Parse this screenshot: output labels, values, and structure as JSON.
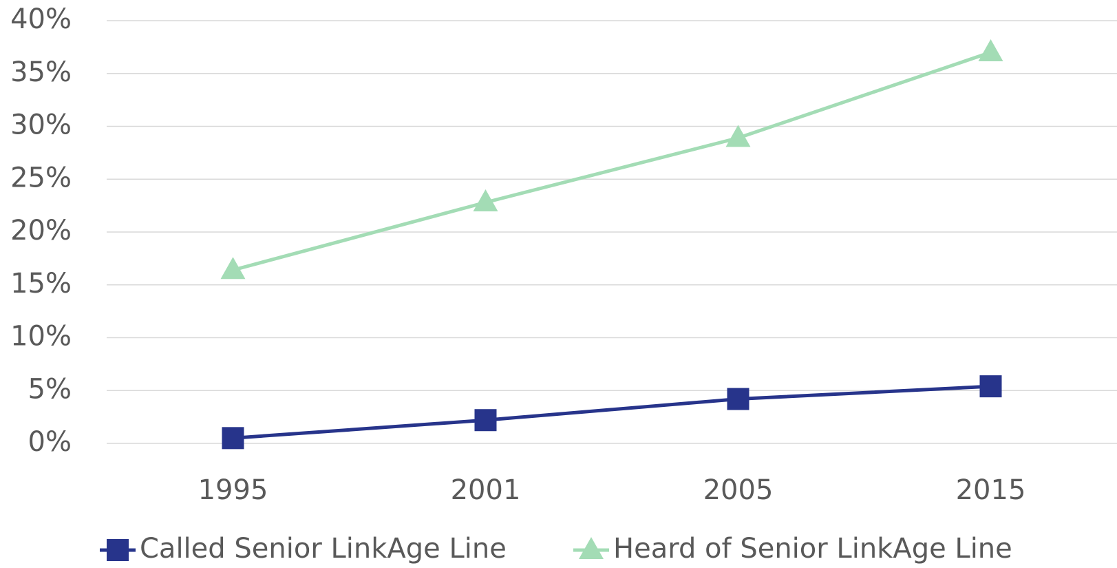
{
  "chart_data": {
    "type": "line",
    "categories": [
      "1995",
      "2001",
      "2005",
      "2015"
    ],
    "series": [
      {
        "name": "Called Senior LinkAge Line",
        "color": "#27348b",
        "marker": "square",
        "values": [
          0.5,
          2.2,
          4.2,
          5.4
        ]
      },
      {
        "name": "Heard of Senior LinkAge Line",
        "color": "#a3dcb5",
        "marker": "triangle",
        "values": [
          16.4,
          22.8,
          28.9,
          37.0
        ]
      }
    ],
    "ylim": [
      0,
      40
    ],
    "yticks": [
      {
        "value": 0,
        "label": "0%"
      },
      {
        "value": 5,
        "label": "5%"
      },
      {
        "value": 10,
        "label": "10%"
      },
      {
        "value": 15,
        "label": "15%"
      },
      {
        "value": 20,
        "label": "20%"
      },
      {
        "value": 25,
        "label": "25%"
      },
      {
        "value": 30,
        "label": "30%"
      },
      {
        "value": 35,
        "label": "35%"
      },
      {
        "value": 40,
        "label": "40%"
      }
    ],
    "grid": true,
    "legend": "bottom"
  }
}
